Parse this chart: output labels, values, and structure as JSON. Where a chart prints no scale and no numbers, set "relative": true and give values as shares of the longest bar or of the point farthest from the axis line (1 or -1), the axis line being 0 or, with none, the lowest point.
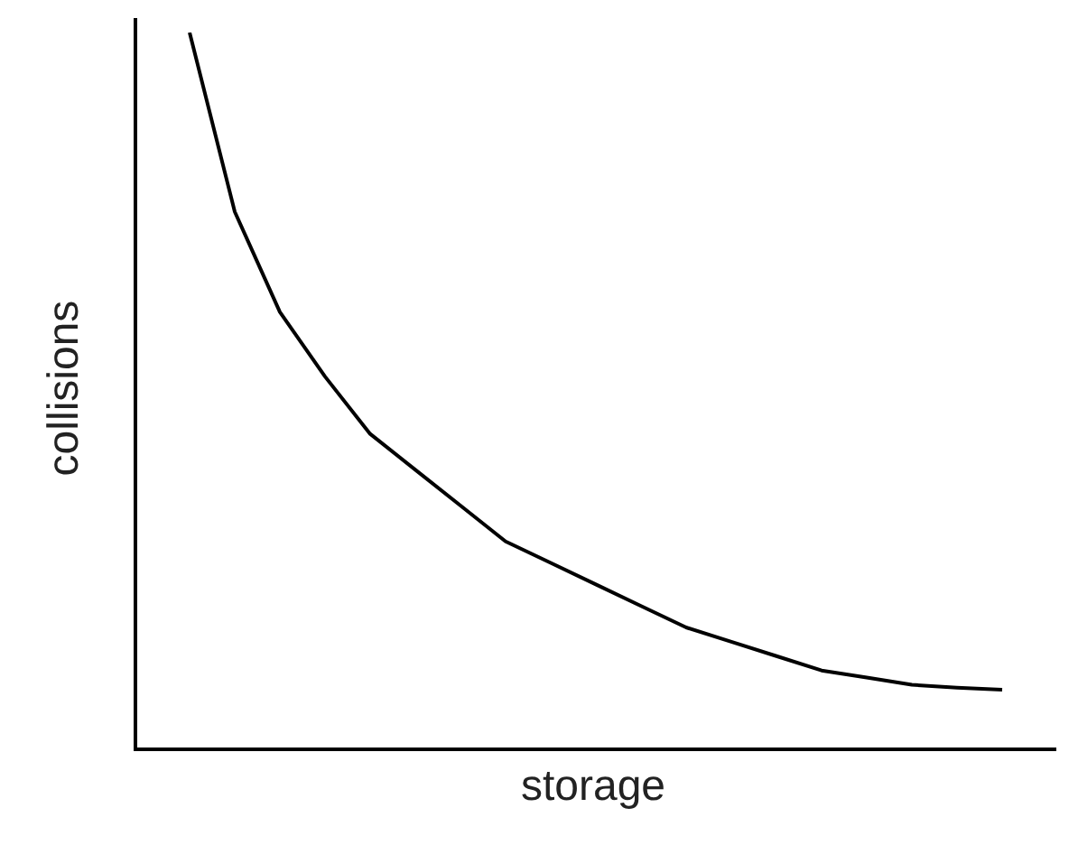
{
  "chart_data": {
    "type": "line",
    "xlabel": "storage",
    "ylabel": "collisions",
    "relative": true,
    "marker": "none",
    "categories": [
      null,
      null,
      null,
      null,
      null,
      null,
      null,
      null,
      null,
      null,
      null,
      null,
      null,
      null,
      null,
      null,
      null,
      null,
      null
    ],
    "series": [
      {
        "color": "#000000",
        "values": [
          1.0,
          0.75,
          0.61,
          0.52,
          0.44,
          0.39,
          0.34,
          0.29,
          0.26,
          0.23,
          0.2,
          0.17,
          0.15,
          0.13,
          0.11,
          0.1,
          0.09,
          0.086,
          0.083
        ]
      }
    ]
  }
}
